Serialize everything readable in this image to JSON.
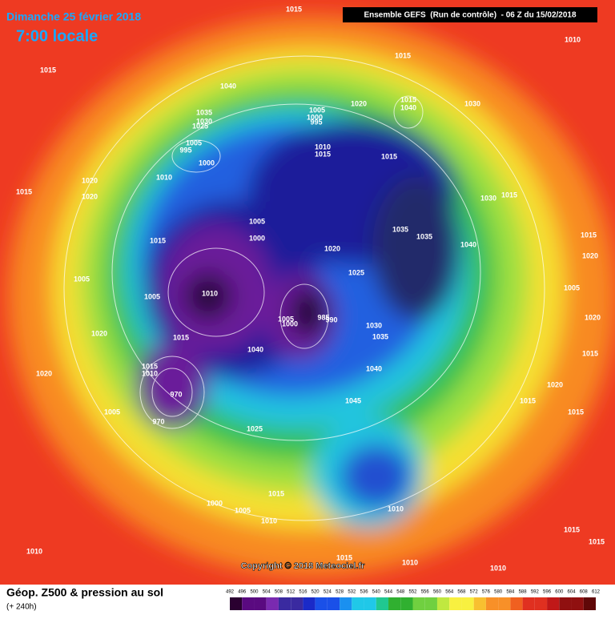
{
  "header": {
    "date": "Dimanche 25 février 2018",
    "time": "7:00 locale",
    "run": "Ensemble GEFS  (Run de contrôle)  - 06 Z du 15/02/2018"
  },
  "map": {
    "isobar_labels": [
      "1015",
      "1015",
      "1040",
      "1035",
      "1030",
      "1025",
      "1005",
      "1000",
      "995",
      "1005",
      "995",
      "1000",
      "1010",
      "1020",
      "1020",
      "1015",
      "1015",
      "1010",
      "1020",
      "1015",
      "1040",
      "1030",
      "1010",
      "1015",
      "1015",
      "1005",
      "1000",
      "1015",
      "1030",
      "1015",
      "1035",
      "1035",
      "1040",
      "1020",
      "1025",
      "1005",
      "1005",
      "1010",
      "1005",
      "1000",
      "985",
      "990",
      "1030",
      "1035",
      "1020",
      "1015",
      "1040",
      "1040",
      "1015",
      "1010",
      "1020",
      "970",
      "1045",
      "1005",
      "970",
      "1025",
      "1015",
      "1020",
      "1005",
      "1020",
      "1015",
      "1020",
      "1015",
      "1015",
      "1015",
      "1000",
      "1005",
      "1010",
      "1010",
      "1015",
      "1015",
      "1010",
      "1015",
      "1010",
      "1010"
    ],
    "copyright": "Copyright © 2018 Meteociel.fr"
  },
  "footer": {
    "title": "Géop. Z500 & pression au sol",
    "subtitle": "(+ 240h)",
    "scale": [
      492,
      496,
      500,
      504,
      508,
      512,
      516,
      520,
      524,
      528,
      532,
      536,
      540,
      544,
      548,
      552,
      556,
      560,
      564,
      568,
      572,
      576,
      580,
      584,
      588,
      592,
      596,
      600,
      604,
      608,
      612
    ]
  }
}
